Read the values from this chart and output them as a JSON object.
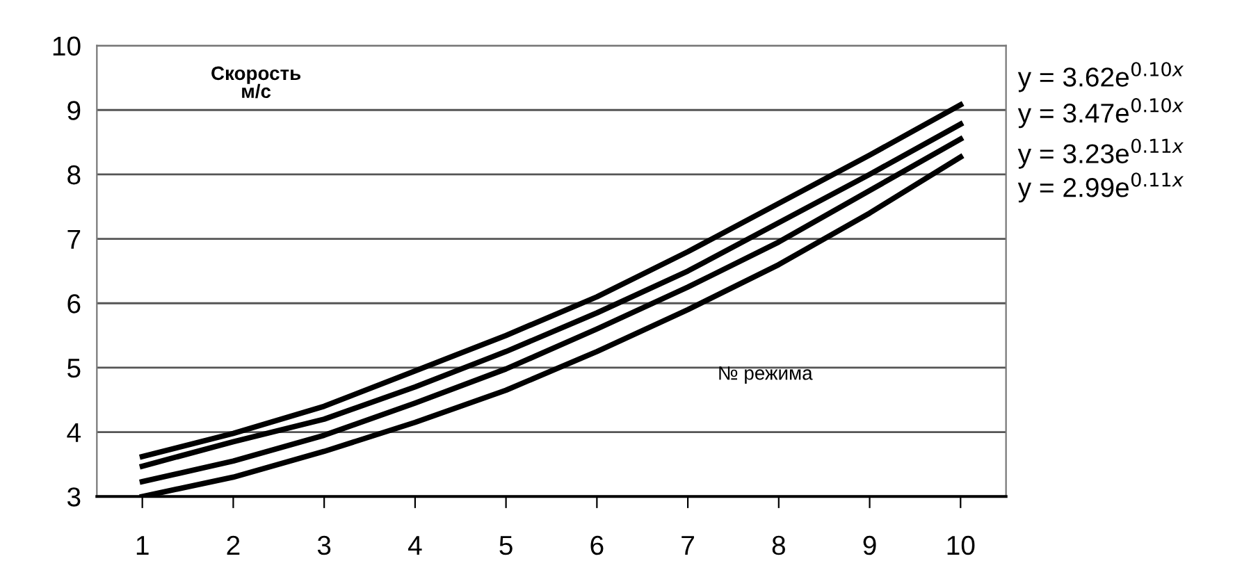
{
  "chart_data": {
    "type": "line",
    "ylabel": "Скорость\nм/с",
    "xlabel": "№ режима",
    "categories": [
      "1",
      "2",
      "3",
      "4",
      "5",
      "6",
      "7",
      "8",
      "9",
      "10"
    ],
    "series": [
      {
        "color": "#000000",
        "values": [
          3.62,
          3.98,
          4.4,
          4.95,
          5.5,
          6.1,
          6.8,
          7.55,
          8.3,
          9.08
        ]
      },
      {
        "color": "#000000",
        "values": [
          3.47,
          3.85,
          4.2,
          4.7,
          5.25,
          5.85,
          6.5,
          7.25,
          8.0,
          8.78
        ]
      },
      {
        "color": "#000000",
        "values": [
          3.23,
          3.55,
          3.95,
          4.45,
          4.98,
          5.6,
          6.25,
          6.95,
          7.75,
          8.55
        ]
      },
      {
        "color": "#000000",
        "values": [
          3.0,
          3.3,
          3.7,
          4.15,
          4.65,
          5.25,
          5.9,
          6.6,
          7.4,
          8.27
        ]
      }
    ],
    "annotations": [
      "y = 3.62e$^{0.10x}$",
      "y = 3.47e$^{0.10x}$",
      "y = 3.23e$^{0.11x}$",
      "y = 2.99e$^{0.11x}$"
    ],
    "ylim": [
      3,
      10
    ],
    "yticks": [
      3,
      4,
      5,
      6,
      7,
      8,
      9,
      10
    ],
    "grid": "y",
    "marker": "none",
    "line_style": "solid"
  }
}
